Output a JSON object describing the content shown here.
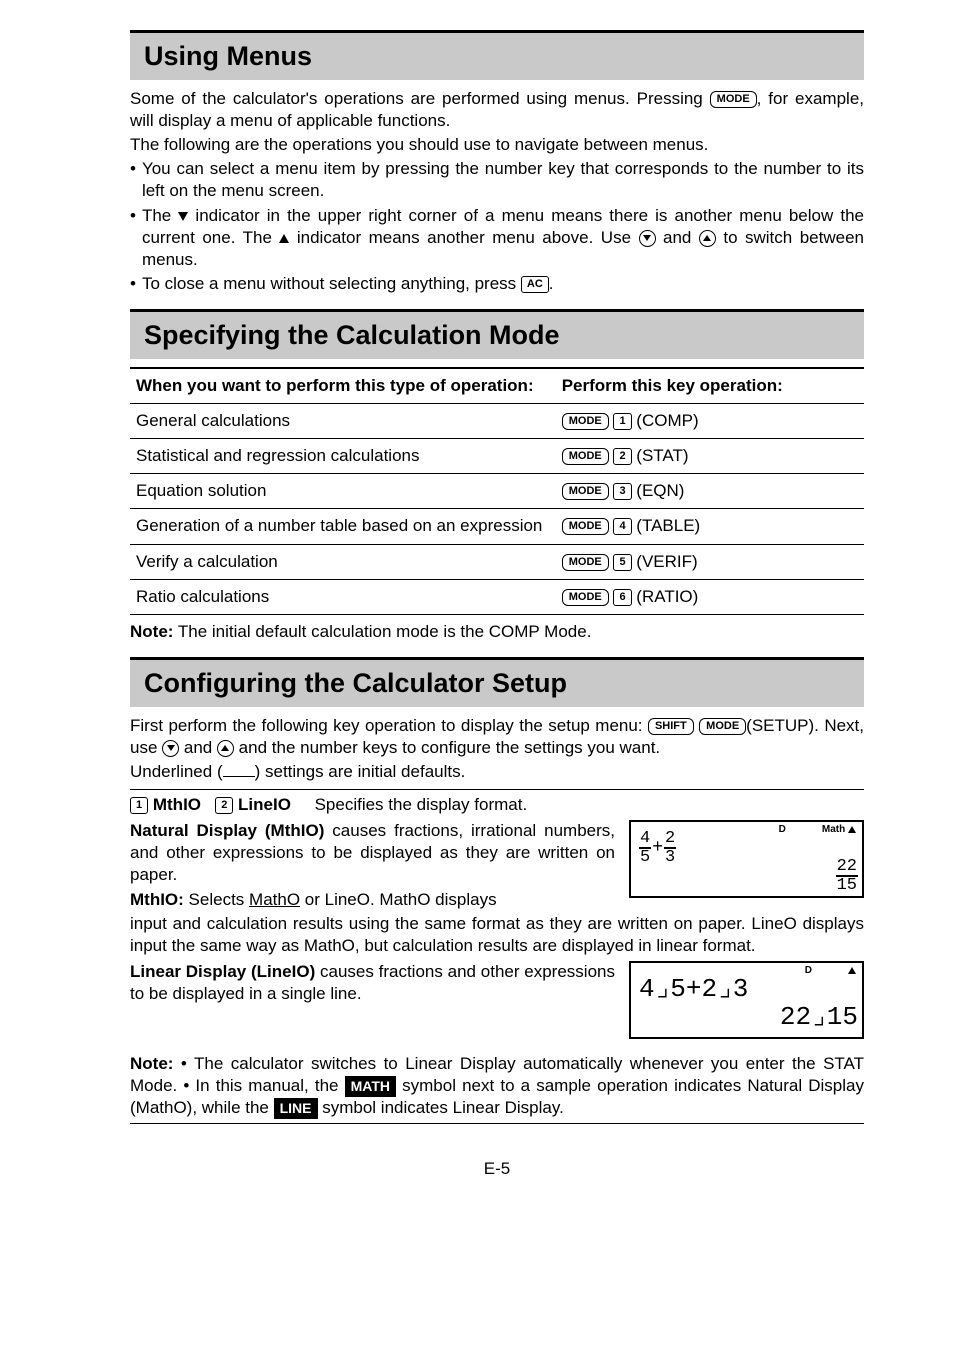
{
  "sections": {
    "using_menus": "Using Menus",
    "specify_mode": "Specifying the Calculation Mode",
    "configure": "Configuring the Calculator Setup"
  },
  "using_menus": {
    "p1a": "Some of the calculator's operations are performed using menus. Pressing ",
    "p1b": ", for example, will display a menu of applicable functions.",
    "p2": "The following are the operations you should use to navigate between menus.",
    "b1": "You can select a menu item by pressing the number key that corresponds to the number to its left on the menu screen.",
    "b2a": "The ",
    "b2b": " indicator in the upper right corner of a menu means there is another menu below the current one. The ",
    "b2c": " indicator means another menu above. Use ",
    "b2d": " and ",
    "b2e": " to switch between menus.",
    "b3a": "To close a menu without selecting anything, press ",
    "b3b": "."
  },
  "mode_table": {
    "head_left": "When you want to perform this type of operation:",
    "head_right": "Perform this key operation:",
    "rows": [
      {
        "op": "General calculations",
        "k": "1",
        "label": "(COMP)"
      },
      {
        "op": "Statistical and regression calculations",
        "k": "2",
        "label": "(STAT)"
      },
      {
        "op": "Equation solution",
        "k": "3",
        "label": "(EQN)"
      },
      {
        "op": "Generation of a number table based on an expression",
        "k": "4",
        "label": "(TABLE)"
      },
      {
        "op": "Verify a calculation",
        "k": "5",
        "label": "(VERIF)"
      },
      {
        "op": "Ratio calculations",
        "k": "6",
        "label": "(RATIO)"
      }
    ]
  },
  "note_mode_label": "Note:",
  "note_mode": " The initial default calculation mode is the COMP Mode.",
  "configure": {
    "p1a": "First perform the following key operation to display the setup menu: ",
    "p1b": "(SETUP). Next, use ",
    "p1c": " and ",
    "p1d": " and the number keys to configure the settings you want.",
    "p2a": "Underlined (",
    "p2b": ") settings are initial defaults.",
    "opt1_k": "1",
    "opt1": "MthIO",
    "opt2_k": "2",
    "opt2": "LineIO",
    "opt_tail": "Specifies the display format.",
    "nat_title": "Natural Display (MthIO)",
    "nat_body": " causes fractions, irrational numbers, and other expressions to be displayed as they are written on paper.",
    "mthio_label": "MthIO:",
    "mthio_a": " Selects ",
    "mthio_u": "MathO",
    "mthio_b": " or LineO. MathO displays input and calculation results using the same format as they are written on paper. LineO displays input the same way as MathO, but calculation results are displayed in linear format.",
    "lin_title": "Linear Display (LineIO)",
    "lin_body": " causes fractions and other expressions to be displayed in a single line.",
    "note2_label": "Note:",
    "note2a": " • The calculator switches to Linear Display automatically whenever you enter the STAT Mode. • In this manual, the ",
    "note2b": " symbol next to a sample operation indicates Natural Display (MathO), while the ",
    "note2c": " symbol indicates Linear Display."
  },
  "keys": {
    "mode": "MODE",
    "ac": "AC",
    "shift": "SHIFT"
  },
  "lcd1": {
    "d": "D",
    "math": "Math",
    "expr_n1": "4",
    "expr_d1": "5",
    "expr_n2": "2",
    "expr_d2": "3",
    "res_n": "22",
    "res_d": "15"
  },
  "lcd2": {
    "d": "D",
    "expr": "4⌟5+2⌟3",
    "result": "22⌟15"
  },
  "badges": {
    "math": "MATH",
    "line": "LINE"
  },
  "footer": "E-5"
}
